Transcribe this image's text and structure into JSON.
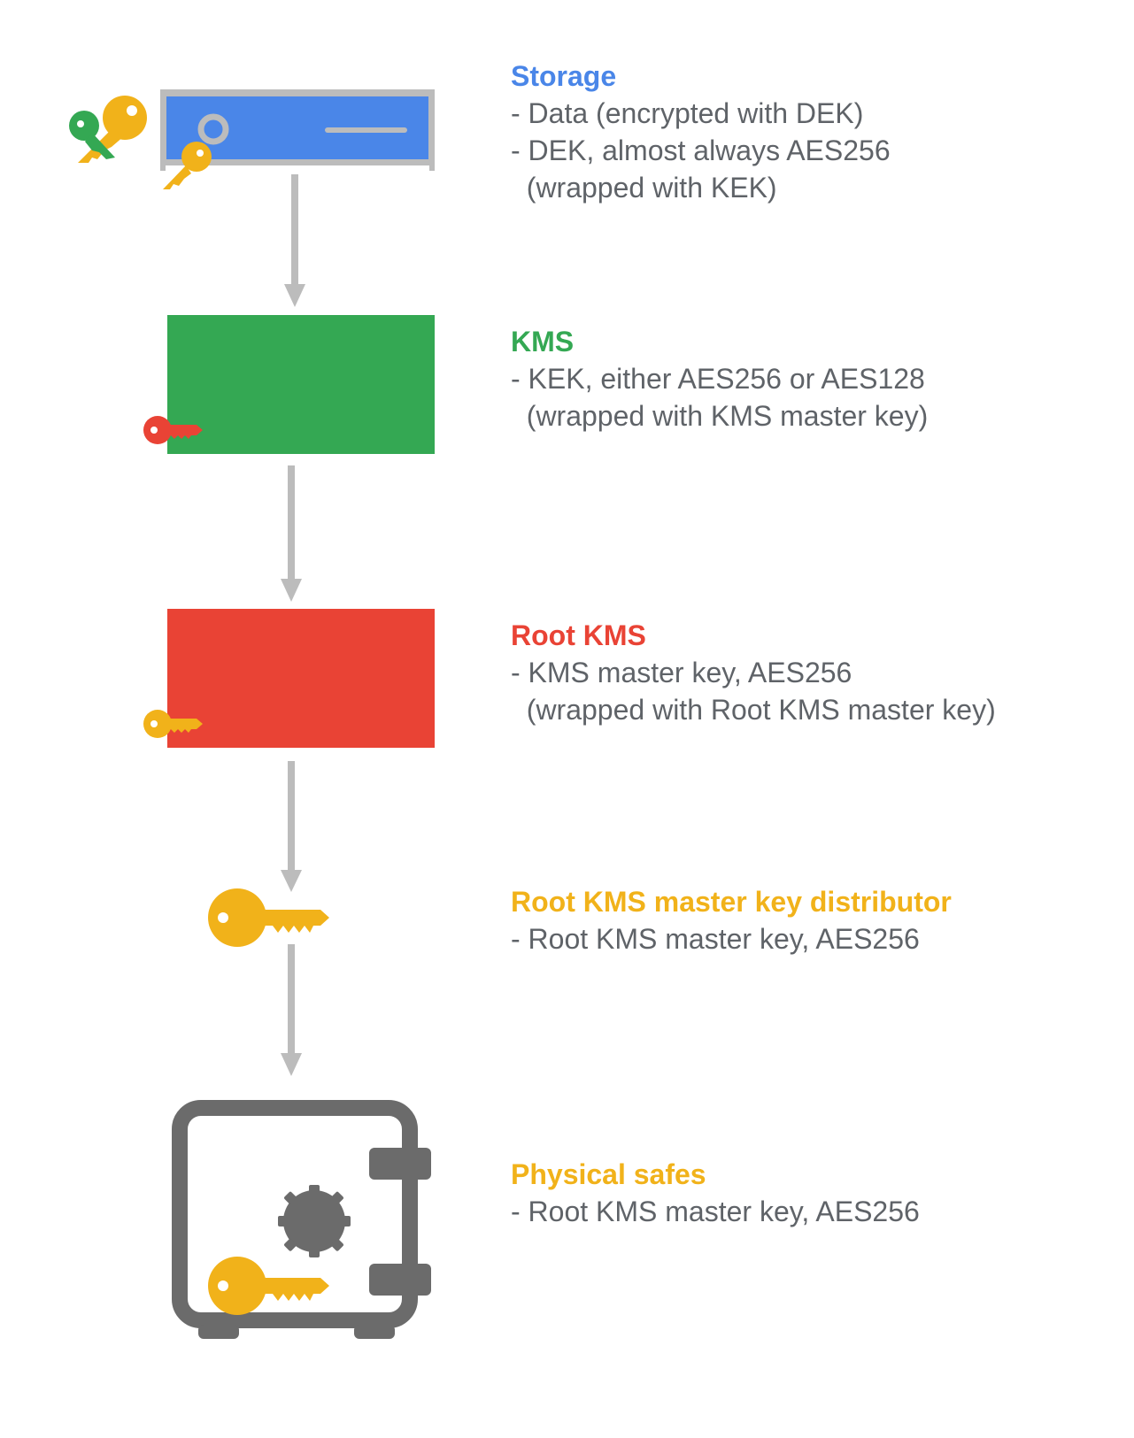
{
  "colors": {
    "blue": "#4a86e8",
    "green": "#34a853",
    "red": "#e94335",
    "yellow": "#f1b21a",
    "gray": "#6b6b6b",
    "light_gray": "#bcbcbc",
    "text": "#5f6368"
  },
  "tiers": [
    {
      "title": "Storage",
      "title_color": "#4a86e8",
      "lines": [
        "- Data (encrypted with DEK)",
        "- DEK, almost always AES256",
        "  (wrapped with KEK)"
      ],
      "icon": "storage-server-icon"
    },
    {
      "title": "KMS",
      "title_color": "#34a853",
      "lines": [
        "- KEK, either AES256 or AES128",
        "  (wrapped with KMS master key)"
      ],
      "icon": "kms-box-icon"
    },
    {
      "title": "Root KMS",
      "title_color": "#e94335",
      "lines": [
        "- KMS master key, AES256",
        "  (wrapped with Root KMS master key)"
      ],
      "icon": "root-kms-box-icon"
    },
    {
      "title": "Root KMS master key distributor",
      "title_color": "#f1b21a",
      "lines": [
        "- Root KMS master key, AES256"
      ],
      "icon": "key-icon"
    },
    {
      "title": "Physical safes",
      "title_color": "#f1b21a",
      "lines": [
        "- Root KMS master key, AES256"
      ],
      "icon": "safe-icon"
    }
  ]
}
